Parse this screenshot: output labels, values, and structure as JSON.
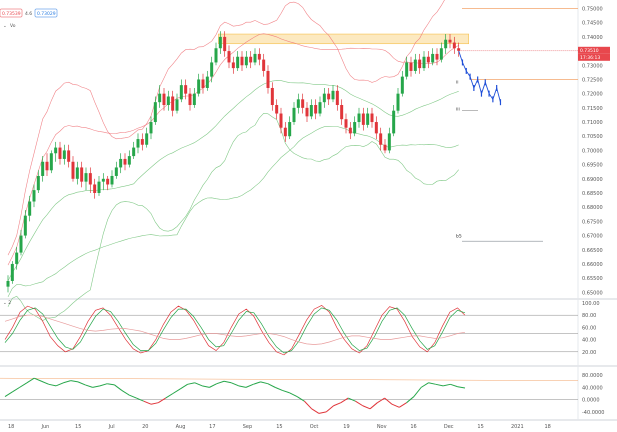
{
  "header": {
    "badges": [
      {
        "text": "0.73539",
        "color": "#e8474d"
      },
      {
        "text": "4.6",
        "color": "#555555"
      },
      {
        "text": "0.73029",
        "color": "#2a7de1"
      }
    ],
    "indicator_label": "Vo"
  },
  "price_tags": [
    {
      "text": "0.73510",
      "bg": "#e8474d"
    },
    {
      "text": "17:36:13",
      "bg": "#e8474d"
    }
  ],
  "wave_labels": [
    {
      "text": "ii",
      "price": 0.7235
    },
    {
      "text": "iii",
      "price": 0.714
    }
  ],
  "level_label": {
    "text": "b5",
    "price": 0.67
  },
  "colors": {
    "up": "#26a64a",
    "down": "#e0353a",
    "band_red": "#ef6f74",
    "band_green": "#6cbf73",
    "forecast": "#1f4fd8",
    "zone": "#f6c14b",
    "hline": "#f3a46b",
    "osc_fast": "#e0353a",
    "osc_slow": "#26a64a",
    "osc_third": "#e89c9c"
  },
  "chart_data": [
    {
      "type": "candlestick",
      "title": "",
      "y_axis_ticks": [
        0.75,
        0.745,
        0.74,
        0.735,
        0.73,
        0.725,
        0.72,
        0.715,
        0.71,
        0.705,
        0.7,
        0.695,
        0.69,
        0.685,
        0.68,
        0.675,
        0.67,
        0.665,
        0.66,
        0.655,
        0.65
      ],
      "y_axis_tick_labels": [
        "0.75000",
        "0.74500",
        "0.74000",
        "0.73500",
        "0.73000",
        "0.72500",
        "0.72000",
        "0.71500",
        "0.71000",
        "0.70500",
        "0.70000",
        "0.69500",
        "0.69000",
        "0.68500",
        "0.68000",
        "0.67500",
        "0.67000",
        "0.66500",
        "0.66000",
        "0.65500",
        "0.65000"
      ],
      "ylim": [
        0.648,
        0.753
      ],
      "x_axis_labels": [
        "18",
        "Jun",
        "15",
        "Jul",
        "20",
        "Aug",
        "17",
        "Sep",
        "15",
        "Oct",
        "19",
        "Nov",
        "16",
        "Dec",
        "15",
        "2021",
        "18"
      ],
      "last_price": 0.7351,
      "horizontal_lines": [
        0.75,
        0.725,
        0.668
      ],
      "zone": {
        "low": 0.739,
        "high": 0.741
      },
      "candles": [
        [
          0.652,
          0.654,
          0.65,
          0.656
        ],
        [
          0.654,
          0.66,
          0.653,
          0.661
        ],
        [
          0.66,
          0.664,
          0.658,
          0.666
        ],
        [
          0.664,
          0.67,
          0.663,
          0.672
        ],
        [
          0.67,
          0.677,
          0.669,
          0.679
        ],
        [
          0.677,
          0.682,
          0.675,
          0.684
        ],
        [
          0.682,
          0.686,
          0.68,
          0.688
        ],
        [
          0.686,
          0.691,
          0.685,
          0.693
        ],
        [
          0.691,
          0.696,
          0.689,
          0.698
        ],
        [
          0.696,
          0.693,
          0.691,
          0.699
        ],
        [
          0.693,
          0.699,
          0.692,
          0.7
        ],
        [
          0.699,
          0.701,
          0.696,
          0.703
        ],
        [
          0.701,
          0.697,
          0.695,
          0.703
        ],
        [
          0.697,
          0.7,
          0.695,
          0.702
        ],
        [
          0.7,
          0.696,
          0.694,
          0.702
        ],
        [
          0.696,
          0.69,
          0.689,
          0.698
        ],
        [
          0.69,
          0.694,
          0.688,
          0.696
        ],
        [
          0.694,
          0.689,
          0.687,
          0.696
        ],
        [
          0.689,
          0.692,
          0.686,
          0.694
        ],
        [
          0.692,
          0.688,
          0.685,
          0.694
        ],
        [
          0.688,
          0.685,
          0.683,
          0.69
        ],
        [
          0.685,
          0.689,
          0.684,
          0.691
        ],
        [
          0.689,
          0.69,
          0.686,
          0.692
        ],
        [
          0.69,
          0.688,
          0.686,
          0.691
        ],
        [
          0.688,
          0.691,
          0.687,
          0.693
        ],
        [
          0.691,
          0.694,
          0.69,
          0.696
        ],
        [
          0.694,
          0.697,
          0.692,
          0.699
        ],
        [
          0.697,
          0.695,
          0.693,
          0.699
        ],
        [
          0.695,
          0.698,
          0.694,
          0.7
        ],
        [
          0.698,
          0.701,
          0.697,
          0.703
        ],
        [
          0.701,
          0.704,
          0.699,
          0.706
        ],
        [
          0.704,
          0.702,
          0.7,
          0.706
        ],
        [
          0.702,
          0.706,
          0.701,
          0.708
        ],
        [
          0.706,
          0.71,
          0.704,
          0.712
        ],
        [
          0.71,
          0.717,
          0.709,
          0.719
        ],
        [
          0.717,
          0.72,
          0.715,
          0.723
        ],
        [
          0.72,
          0.716,
          0.714,
          0.722
        ],
        [
          0.716,
          0.719,
          0.714,
          0.721
        ],
        [
          0.719,
          0.714,
          0.712,
          0.721
        ],
        [
          0.714,
          0.718,
          0.713,
          0.72
        ],
        [
          0.718,
          0.723,
          0.717,
          0.725
        ],
        [
          0.723,
          0.72,
          0.718,
          0.725
        ],
        [
          0.72,
          0.716,
          0.714,
          0.722
        ],
        [
          0.716,
          0.72,
          0.715,
          0.722
        ],
        [
          0.72,
          0.725,
          0.719,
          0.727
        ],
        [
          0.725,
          0.722,
          0.72,
          0.727
        ],
        [
          0.722,
          0.726,
          0.721,
          0.728
        ],
        [
          0.726,
          0.731,
          0.724,
          0.733
        ],
        [
          0.731,
          0.736,
          0.73,
          0.738
        ],
        [
          0.736,
          0.74,
          0.734,
          0.742
        ],
        [
          0.74,
          0.735,
          0.733,
          0.742
        ],
        [
          0.735,
          0.731,
          0.729,
          0.737
        ],
        [
          0.731,
          0.729,
          0.727,
          0.733
        ],
        [
          0.729,
          0.733,
          0.728,
          0.735
        ],
        [
          0.733,
          0.73,
          0.728,
          0.735
        ],
        [
          0.73,
          0.733,
          0.729,
          0.735
        ],
        [
          0.733,
          0.731,
          0.729,
          0.735
        ],
        [
          0.731,
          0.734,
          0.73,
          0.736
        ],
        [
          0.734,
          0.732,
          0.73,
          0.736
        ],
        [
          0.732,
          0.728,
          0.726,
          0.734
        ],
        [
          0.728,
          0.722,
          0.72,
          0.73
        ],
        [
          0.722,
          0.716,
          0.714,
          0.724
        ],
        [
          0.716,
          0.713,
          0.711,
          0.718
        ],
        [
          0.713,
          0.708,
          0.706,
          0.715
        ],
        [
          0.708,
          0.705,
          0.703,
          0.71
        ],
        [
          0.705,
          0.71,
          0.704,
          0.712
        ],
        [
          0.71,
          0.715,
          0.709,
          0.717
        ],
        [
          0.715,
          0.718,
          0.713,
          0.72
        ],
        [
          0.718,
          0.715,
          0.713,
          0.72
        ],
        [
          0.715,
          0.712,
          0.71,
          0.717
        ],
        [
          0.712,
          0.716,
          0.711,
          0.718
        ],
        [
          0.716,
          0.713,
          0.711,
          0.718
        ],
        [
          0.713,
          0.717,
          0.712,
          0.719
        ],
        [
          0.717,
          0.72,
          0.715,
          0.722
        ],
        [
          0.72,
          0.718,
          0.716,
          0.722
        ],
        [
          0.718,
          0.721,
          0.717,
          0.723
        ],
        [
          0.721,
          0.716,
          0.714,
          0.723
        ],
        [
          0.716,
          0.711,
          0.709,
          0.718
        ],
        [
          0.711,
          0.708,
          0.706,
          0.713
        ],
        [
          0.708,
          0.706,
          0.704,
          0.71
        ],
        [
          0.706,
          0.71,
          0.705,
          0.712
        ],
        [
          0.71,
          0.713,
          0.708,
          0.715
        ],
        [
          0.713,
          0.709,
          0.707,
          0.715
        ],
        [
          0.709,
          0.713,
          0.708,
          0.715
        ],
        [
          0.713,
          0.71,
          0.708,
          0.715
        ],
        [
          0.71,
          0.706,
          0.704,
          0.712
        ],
        [
          0.706,
          0.702,
          0.7,
          0.708
        ],
        [
          0.702,
          0.7,
          0.699,
          0.704
        ],
        [
          0.7,
          0.706,
          0.699,
          0.708
        ],
        [
          0.706,
          0.714,
          0.705,
          0.716
        ],
        [
          0.714,
          0.72,
          0.713,
          0.722
        ],
        [
          0.72,
          0.726,
          0.719,
          0.728
        ],
        [
          0.726,
          0.731,
          0.725,
          0.733
        ],
        [
          0.731,
          0.728,
          0.726,
          0.733
        ],
        [
          0.728,
          0.732,
          0.727,
          0.734
        ],
        [
          0.732,
          0.729,
          0.727,
          0.734
        ],
        [
          0.729,
          0.733,
          0.728,
          0.735
        ],
        [
          0.733,
          0.731,
          0.729,
          0.735
        ],
        [
          0.731,
          0.734,
          0.73,
          0.736
        ],
        [
          0.734,
          0.732,
          0.73,
          0.736
        ],
        [
          0.732,
          0.736,
          0.731,
          0.738
        ],
        [
          0.736,
          0.739,
          0.734,
          0.741
        ],
        [
          0.739,
          0.738,
          0.736,
          0.741
        ],
        [
          0.738,
          0.736,
          0.734,
          0.74
        ],
        [
          0.736,
          0.7351,
          0.733,
          0.738
        ]
      ],
      "forecast_path": [
        0.7351,
        0.731,
        0.728,
        0.726,
        0.722,
        0.725,
        0.72,
        0.724,
        0.72,
        0.718,
        0.722,
        0.717
      ]
    },
    {
      "type": "line",
      "title": "",
      "y_axis_ticks": [
        100,
        80,
        60,
        40,
        20
      ],
      "y_axis_tick_labels": [
        "100.00",
        "80.00",
        "60.00",
        "40.00",
        "20.00"
      ],
      "ylim": [
        0,
        100
      ],
      "horizontal_lines": [
        80,
        50,
        20
      ],
      "series": [
        {
          "values": [
            40,
            60,
            85,
            95,
            90,
            70,
            45,
            30,
            20,
            25,
            45,
            70,
            88,
            92,
            80,
            60,
            40,
            25,
            18,
            22,
            40,
            65,
            85,
            95,
            88,
            72,
            50,
            30,
            22,
            35,
            60,
            82,
            90,
            78,
            55,
            35,
            20,
            15,
            25,
            48,
            72,
            90,
            96,
            85,
            60,
            40,
            25,
            18,
            30,
            55,
            80,
            94,
            90,
            70,
            45,
            28,
            20,
            35,
            62,
            85,
            92,
            80
          ]
        },
        {
          "values": [
            35,
            50,
            72,
            88,
            92,
            82,
            62,
            42,
            28,
            24,
            36,
            58,
            78,
            90,
            86,
            70,
            50,
            32,
            22,
            22,
            34,
            56,
            76,
            90,
            90,
            78,
            60,
            40,
            28,
            30,
            50,
            72,
            86,
            84,
            66,
            45,
            28,
            18,
            22,
            38,
            62,
            82,
            92,
            88,
            72,
            50,
            32,
            22,
            26,
            45,
            70,
            88,
            92,
            80,
            58,
            38,
            24,
            30,
            52,
            76,
            88,
            84
          ]
        },
        {
          "values": [
            70,
            74,
            78,
            80,
            80,
            78,
            74,
            70,
            66,
            62,
            58,
            55,
            54,
            55,
            57,
            58,
            58,
            56,
            54,
            50,
            46,
            42,
            40,
            40,
            42,
            45,
            48,
            50,
            50,
            48,
            46,
            45,
            46,
            48,
            50,
            50,
            48,
            45,
            40,
            36,
            33,
            32,
            33,
            36,
            40,
            44,
            46,
            46,
            44,
            42,
            40,
            40,
            42,
            44,
            46,
            46,
            44,
            42,
            43,
            46,
            50,
            52
          ]
        }
      ]
    },
    {
      "type": "line",
      "title": "",
      "y_axis_ticks": [
        80,
        40,
        0,
        -40
      ],
      "y_axis_tick_labels": [
        "80.0000",
        "40.0000",
        "0.0000",
        "-40.0000"
      ],
      "ylim": [
        -60,
        100
      ],
      "horizontal_lines": [
        0
      ],
      "series": [
        {
          "values": [
            10,
            25,
            40,
            55,
            70,
            60,
            50,
            45,
            55,
            62,
            58,
            48,
            40,
            45,
            52,
            48,
            30,
            15,
            5,
            -5,
            -15,
            -10,
            5,
            20,
            35,
            50,
            55,
            45,
            40,
            52,
            60,
            55,
            45,
            40,
            50,
            58,
            52,
            40,
            30,
            22,
            10,
            -5,
            -30,
            -45,
            -40,
            -20,
            -10,
            5,
            -5,
            -20,
            -30,
            -10,
            5,
            -15,
            -25,
            -10,
            10,
            40,
            55,
            50,
            45,
            50,
            42,
            38
          ]
        }
      ]
    }
  ]
}
